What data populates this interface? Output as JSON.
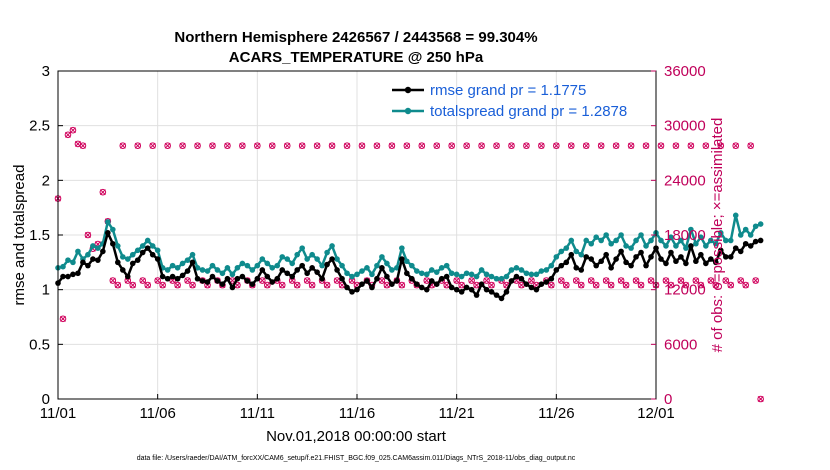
{
  "chart_data": {
    "type": "line",
    "title": "Northern Hemisphere 2426567 / 2443568 = 99.304%",
    "subtitle": "ACARS_TEMPERATURE @ 250 hPa",
    "xlabel": "Nov.01,2018 00:00:00 start",
    "ylabel": "rmse and totalspread",
    "y2label": "# of obs: o=possible; ×=assimilated",
    "footnote": "data file: /Users/raeder/DAI/ATM_forcXX/CAM6_setup/f.e21.FHIST_BGC.f09_025.CAM6assim.011/Diags_NTrS_2018-11/obs_diag_output.nc",
    "xlim": [
      0,
      30
    ],
    "ylim": [
      0,
      3
    ],
    "y2lim": [
      0,
      36000
    ],
    "x_ticks": [
      {
        "value": 0,
        "label": "11/01"
      },
      {
        "value": 5,
        "label": "11/06"
      },
      {
        "value": 10,
        "label": "11/11"
      },
      {
        "value": 15,
        "label": "11/16"
      },
      {
        "value": 20,
        "label": "11/21"
      },
      {
        "value": 25,
        "label": "11/26"
      },
      {
        "value": 30,
        "label": "12/01"
      }
    ],
    "y_ticks": [
      "0",
      "0.5",
      "1",
      "1.5",
      "2",
      "2.5",
      "3"
    ],
    "y2_ticks": [
      "0",
      "6000",
      "12000",
      "18000",
      "24000",
      "30000",
      "36000"
    ],
    "grid": true,
    "legend_position": "top-right",
    "x_step_days": 0.25,
    "series": [
      {
        "name": "rmse grand pr = 1.1775",
        "color": "#000000",
        "axis": "left",
        "values": [
          1.06,
          1.12,
          1.12,
          1.14,
          1.15,
          1.25,
          1.22,
          1.28,
          1.27,
          1.35,
          1.52,
          1.42,
          1.25,
          1.18,
          1.12,
          1.24,
          1.27,
          1.34,
          1.38,
          1.32,
          1.28,
          1.12,
          1.1,
          1.12,
          1.1,
          1.13,
          1.17,
          1.25,
          1.1,
          1.08,
          1.07,
          1.12,
          1.08,
          1.05,
          1.1,
          1.02,
          1.1,
          1.12,
          1.08,
          1.05,
          1.1,
          1.18,
          1.12,
          1.07,
          1.1,
          1.18,
          1.15,
          1.12,
          1.18,
          1.22,
          1.15,
          1.2,
          1.16,
          1.1,
          1.23,
          1.28,
          1.18,
          1.1,
          1.02,
          0.98,
          1.0,
          1.05,
          1.08,
          1.02,
          1.1,
          1.2,
          1.12,
          1.05,
          1.08,
          1.28,
          1.15,
          1.1,
          1.05,
          1.02,
          1.0,
          1.08,
          1.05,
          1.1,
          1.12,
          1.02,
          1.0,
          0.98,
          1.02,
          1.0,
          0.95,
          1.05,
          1.0,
          0.98,
          0.95,
          0.92,
          0.98,
          1.08,
          1.12,
          1.1,
          1.05,
          1.02,
          1.0,
          1.05,
          1.07,
          1.1,
          1.18,
          1.22,
          1.25,
          1.32,
          1.2,
          1.18,
          1.3,
          1.28,
          1.22,
          1.26,
          1.32,
          1.2,
          1.28,
          1.35,
          1.25,
          1.22,
          1.3,
          1.34,
          1.22,
          1.3,
          1.38,
          1.28,
          1.24,
          1.34,
          1.26,
          1.3,
          1.24,
          1.4,
          1.26,
          1.32,
          1.24,
          1.28,
          1.25,
          1.36,
          1.3,
          1.3,
          1.38,
          1.35,
          1.42,
          1.4,
          1.44,
          1.45
        ]
      },
      {
        "name": "totalspread grand pr = 1.2878",
        "color": "#0f8b8d",
        "axis": "left",
        "values": [
          1.2,
          1.21,
          1.27,
          1.25,
          1.35,
          1.28,
          1.32,
          1.4,
          1.38,
          1.42,
          1.62,
          1.55,
          1.4,
          1.3,
          1.28,
          1.32,
          1.36,
          1.4,
          1.45,
          1.4,
          1.36,
          1.2,
          1.18,
          1.22,
          1.2,
          1.24,
          1.27,
          1.32,
          1.2,
          1.18,
          1.17,
          1.22,
          1.18,
          1.15,
          1.2,
          1.14,
          1.2,
          1.24,
          1.22,
          1.18,
          1.22,
          1.28,
          1.24,
          1.2,
          1.22,
          1.3,
          1.28,
          1.24,
          1.32,
          1.38,
          1.28,
          1.32,
          1.28,
          1.22,
          1.34,
          1.4,
          1.28,
          1.22,
          1.15,
          1.12,
          1.14,
          1.17,
          1.2,
          1.14,
          1.22,
          1.3,
          1.24,
          1.18,
          1.2,
          1.38,
          1.26,
          1.22,
          1.17,
          1.15,
          1.14,
          1.18,
          1.16,
          1.2,
          1.22,
          1.15,
          1.14,
          1.12,
          1.15,
          1.14,
          1.12,
          1.18,
          1.14,
          1.12,
          1.1,
          1.1,
          1.12,
          1.18,
          1.2,
          1.18,
          1.15,
          1.14,
          1.14,
          1.17,
          1.18,
          1.22,
          1.3,
          1.35,
          1.38,
          1.45,
          1.35,
          1.32,
          1.45,
          1.42,
          1.48,
          1.45,
          1.5,
          1.42,
          1.45,
          1.5,
          1.4,
          1.38,
          1.45,
          1.5,
          1.4,
          1.45,
          1.52,
          1.45,
          1.4,
          1.48,
          1.4,
          1.45,
          1.38,
          1.55,
          1.42,
          1.48,
          1.4,
          1.45,
          1.42,
          1.52,
          1.45,
          1.45,
          1.68,
          1.5,
          1.55,
          1.5,
          1.58,
          1.6
        ]
      },
      {
        "name": "# of obs (possible / assimilated)",
        "color": "#d0005c",
        "axis": "right",
        "values": [
          22000,
          8800,
          29000,
          29500,
          28000,
          27800,
          18000,
          16500,
          17000,
          22700,
          19500,
          13000,
          12500,
          27800,
          13000,
          12500,
          27800,
          13000,
          12500,
          27800,
          13000,
          12500,
          27800,
          13000,
          12500,
          27800,
          13000,
          12500,
          27800,
          13000,
          12500,
          27800,
          13000,
          12500,
          27800,
          13000,
          12500,
          27800,
          13000,
          12500,
          27800,
          13000,
          12500,
          27800,
          13000,
          12500,
          27800,
          13000,
          12500,
          27800,
          13000,
          12500,
          27800,
          13000,
          12500,
          27800,
          13000,
          12500,
          27800,
          13000,
          12500,
          27800,
          13000,
          12500,
          27800,
          13000,
          12500,
          27800,
          13000,
          12500,
          27800,
          13000,
          12500,
          27800,
          13000,
          12500,
          27800,
          13000,
          12500,
          27800,
          13000,
          12500,
          27800,
          13000,
          12500,
          27800,
          13000,
          12500,
          27800,
          13000,
          12500,
          27800,
          13000,
          12500,
          27800,
          13000,
          12500,
          27800,
          13000,
          12500,
          27800,
          13000,
          12500,
          27800,
          13000,
          12500,
          27800,
          13000,
          12500,
          27800,
          13000,
          12500,
          27800,
          13000,
          12500,
          27800,
          13000,
          12500,
          27800,
          13000,
          12500,
          27800,
          13000,
          12500,
          27800,
          13000,
          12500,
          27800,
          13000,
          12500,
          27800,
          13000,
          12500,
          27800,
          13000,
          12500,
          27800,
          13000,
          12500,
          27800,
          13000,
          0
        ]
      }
    ]
  }
}
